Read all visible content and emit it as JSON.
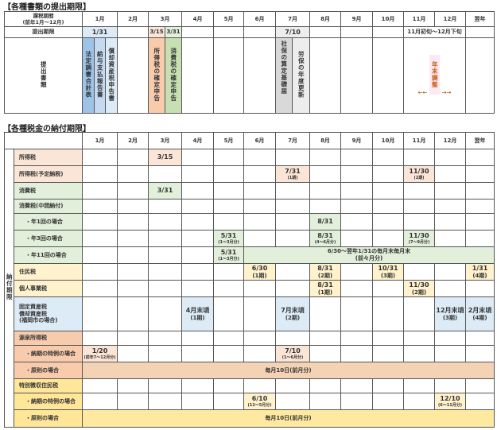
{
  "filing": {
    "title": "【各種書類の提出期限】",
    "period_label": "課税期間\n(前年1月～12月)",
    "months": [
      "1月",
      "2月",
      "3月",
      "4月",
      "5月",
      "6月",
      "7月",
      "8月",
      "9月",
      "10月",
      "11月",
      "12月",
      "翌年"
    ],
    "deadline_label": "提出期限",
    "deadlines": {
      "jan": "1/31",
      "mar1": "3/15",
      "mar2": "3/31",
      "jul": "7/10",
      "novdec": "11月初旬～12月下旬"
    },
    "documents_label": "提出書類",
    "documents": {
      "d1": "法定調書合計表",
      "d2": "給与支払報告書",
      "d3": "償却資産税申告書",
      "d4": "所得税の確定申告",
      "d5": "消費税の確定申告",
      "d6": "社保の算定基礎届",
      "d7": "労保の年度更新",
      "nenmatsu": "年末調整",
      "arrow_left": "←←",
      "arrow_right": "→→"
    },
    "colors": {
      "d1": "#9dc3e6",
      "d2": "#c5d9f1",
      "d3": "#ddebf7",
      "d4": "#f8cbad",
      "d5": "#c6e0b4",
      "d6": "#d9d9d9",
      "d7": "#ededed",
      "nenmatsu_bg": "#fde9f3",
      "nenmatsu_text": "#c55a11"
    }
  },
  "payment": {
    "title": "【各種税金の納付期限】",
    "months": [
      "1月",
      "2月",
      "3月",
      "4月",
      "5月",
      "6月",
      "7月",
      "8月",
      "9月",
      "10月",
      "11月",
      "12月",
      "翌年"
    ],
    "side_label": "納付期限",
    "rows": [
      {
        "label": "所得税",
        "bg": "#fbe5d6",
        "cells": [
          {
            "m": 2,
            "t": "3/15"
          }
        ]
      },
      {
        "label": "所得税(予定納税)",
        "bg": "#fbe5d6",
        "cells": [
          {
            "m": 6,
            "t": "7/31",
            "s": "(1期)"
          },
          {
            "m": 10,
            "t": "11/30",
            "s": "(2期)"
          }
        ]
      },
      {
        "label": "消費税",
        "bg": "#e2efda",
        "cells": [
          {
            "m": 2,
            "t": "3/31"
          }
        ]
      },
      {
        "label": "消費税(中間納付)",
        "bg": "#e2efda",
        "cells": []
      },
      {
        "label": "・年1回の場合",
        "bg": "#e2efda",
        "dot": true,
        "cells": [
          {
            "m": 7,
            "t": "8/31"
          }
        ]
      },
      {
        "label": "・年3回の場合",
        "bg": "#e2efda",
        "dot": true,
        "cells": [
          {
            "m": 4,
            "t": "5/31",
            "s": "(1～3月分)"
          },
          {
            "m": 7,
            "t": "8/31",
            "s": "(4～6月分)"
          },
          {
            "m": 10,
            "t": "11/30",
            "s": "(7～9月分)"
          }
        ]
      },
      {
        "label": "・年11回の場合",
        "bg": "#e2efda",
        "dot": true,
        "cells": [
          {
            "m": 4,
            "t": "5/31",
            "s": "(1～3月分)"
          },
          {
            "m": 5,
            "span": 8,
            "t": "6/30～翌年1/31の毎月末毎月末",
            "s2": "(前々月分)"
          }
        ]
      },
      {
        "label": "住民税",
        "bg": "#fff2cc",
        "cells": [
          {
            "m": 5,
            "t": "6/30",
            "s2": "(1期)"
          },
          {
            "m": 7,
            "t": "8/31",
            "s2": "(2期)"
          },
          {
            "m": 9,
            "t": "10/31",
            "s2": "(3期)"
          },
          {
            "m": 12,
            "t": "1/31",
            "s2": "(4期)"
          }
        ]
      },
      {
        "label": "個人事業税",
        "bg": "#fff2cc",
        "cells": [
          {
            "m": 7,
            "t": "8/31",
            "s2": "(1期)"
          },
          {
            "m": 10,
            "t": "11/30",
            "s2": "(2期)"
          }
        ]
      },
      {
        "label": "固定資産税\n償却資産税\n(福岡市の場合)",
        "bg": "#ddebf7",
        "tall": true,
        "cells": [
          {
            "m": 3,
            "t": "4月末頃",
            "s2": "(1期)"
          },
          {
            "m": 6,
            "t": "7月末頃",
            "s2": "(2期)"
          },
          {
            "m": 11,
            "t": "12月末頃",
            "s2": "(3期)"
          },
          {
            "m": 12,
            "t": "2月末頃",
            "s2": "(4期)"
          }
        ]
      },
      {
        "label": "源泉所得税",
        "bg": "#f8cbad",
        "cells": []
      },
      {
        "label": "・納期の特例の場合",
        "bg": "#f8cbad",
        "dot": true,
        "cellbg": "#fbe5d6",
        "cells": [
          {
            "m": 0,
            "t": "1/20",
            "s": "(前年7～12月分)"
          },
          {
            "m": 6,
            "t": "7/10",
            "s": "(1～6月分)"
          }
        ]
      },
      {
        "label": "・原則の場合",
        "bg": "#f8cbad",
        "dot": true,
        "cellbg": "#f4d3b5",
        "cells": [
          {
            "m": 0,
            "span": 13,
            "t": "毎月10日(前月分)"
          }
        ]
      },
      {
        "label": "特別徴収住民税",
        "bg": "#ffe699",
        "cells": []
      },
      {
        "label": "・納期の特例の場合",
        "bg": "#ffe699",
        "dot": true,
        "cellbg": "#fff2cc",
        "cells": [
          {
            "m": 5,
            "t": "6/10",
            "s": "(12～5月分)"
          },
          {
            "m": 11,
            "t": "12/10",
            "s": "(6～11月分)"
          }
        ]
      },
      {
        "label": "・原則の場合",
        "bg": "#ffe699",
        "dot": true,
        "cellbg": "#ffe9a0",
        "cells": [
          {
            "m": 0,
            "span": 13,
            "t": "毎月10日(前月分)"
          }
        ]
      }
    ]
  }
}
